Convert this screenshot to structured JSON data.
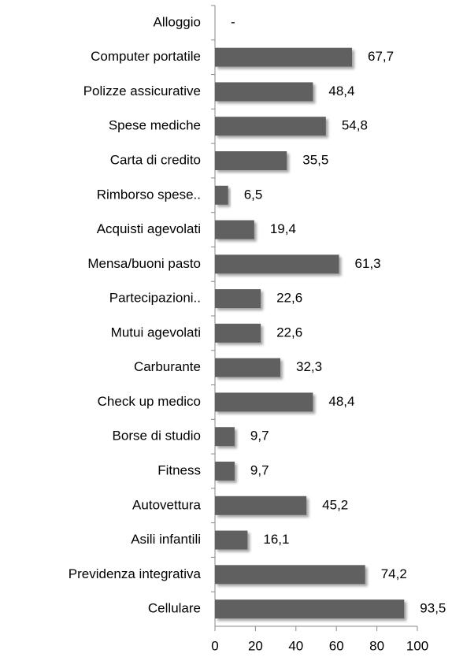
{
  "chart_data": {
    "type": "barh",
    "categories": [
      "Alloggio",
      "Computer portatile",
      "Polizze assicurative",
      "Spese mediche",
      "Carta di credito",
      "Rimborso spese..",
      "Acquisti agevolati",
      "Mensa/buoni pasto",
      "Partecipazioni..",
      "Mutui agevolati",
      "Carburante",
      "Check up medico",
      "Borse di studio",
      "Fitness",
      "Autovettura",
      "Asili infantili",
      "Previdenza integrativa",
      "Cellulare"
    ],
    "values": [
      null,
      67.7,
      48.4,
      54.8,
      35.5,
      6.5,
      19.4,
      61.3,
      22.6,
      22.6,
      32.3,
      48.4,
      9.7,
      9.7,
      45.2,
      16.1,
      74.2,
      93.5
    ],
    "value_labels": [
      "-",
      "67,7",
      "48,4",
      "54,8",
      "35,5",
      "6,5",
      "19,4",
      "61,3",
      "22,6",
      "22,6",
      "32,3",
      "48,4",
      "9,7",
      "9,7",
      "45,2",
      "16,1",
      "74,2",
      "93,5"
    ],
    "color": "#606060",
    "xlim": [
      0,
      100
    ],
    "xticks": [
      0,
      20,
      40,
      60,
      80,
      100
    ]
  }
}
